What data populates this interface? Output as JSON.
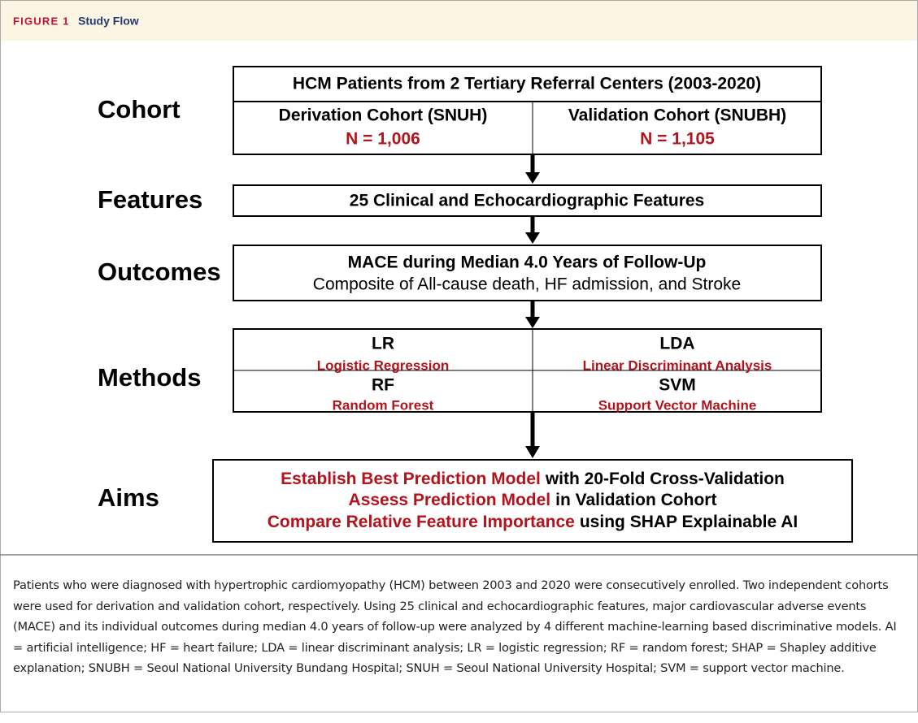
{
  "header": {
    "label": "FIGURE 1",
    "title": "Study Flow"
  },
  "cohort": {
    "label": "Cohort",
    "title": "HCM Patients from 2 Tertiary Referral Centers (2003-2020)",
    "groups": [
      {
        "name": "Derivation Cohort (SNUH)",
        "n": "N = 1,006"
      },
      {
        "name": "Validation Cohort (SNUBH)",
        "n": "N = 1,105"
      }
    ]
  },
  "features": {
    "label": "Features",
    "text": "25 Clinical and Echocardiographic Features"
  },
  "outcomes": {
    "label": "Outcomes",
    "title": "MACE during Median 4.0 Years of Follow-Up",
    "subtitle": "Composite of All-cause death, HF admission, and Stroke"
  },
  "methods": {
    "label": "Methods",
    "items": [
      {
        "abbr": "LR",
        "name": "Logistic Regression"
      },
      {
        "abbr": "LDA",
        "name": "Linear Discriminant Analysis"
      },
      {
        "abbr": "RF",
        "name": "Random Forest"
      },
      {
        "abbr": "SVM",
        "name": "Support Vector Machine"
      }
    ]
  },
  "aims": {
    "label": "Aims",
    "lines": [
      {
        "highlight": "Establish Best Prediction Model",
        "rest": "with 20-Fold Cross-Validation"
      },
      {
        "highlight": "Assess Prediction Model",
        "rest": "in Validation Cohort"
      },
      {
        "highlight": "Compare Relative Feature Importance",
        "rest": "using SHAP Explainable AI"
      }
    ]
  },
  "caption": "Patients who were diagnosed with hypertrophic cardiomyopathy (HCM) between 2003 and 2020 were consecutively enrolled. Two independent cohorts were used for derivation and validation cohort, respectively. Using 25 clinical and echocardiographic features, major cardiovascular adverse events (MACE) and its individual outcomes during median 4.0 years of follow-up were analyzed by 4 different machine-learning based discriminative models. AI = artificial intelligence; HF = heart failure; LDA = linear discriminant analysis; LR = logistic regression; RF = random forest; SHAP = Shapley additive explanation; SNUBH = Seoul National University Bundang Hospital; SNUH = Seoul National University Hospital; SVM = support vector machine."
}
